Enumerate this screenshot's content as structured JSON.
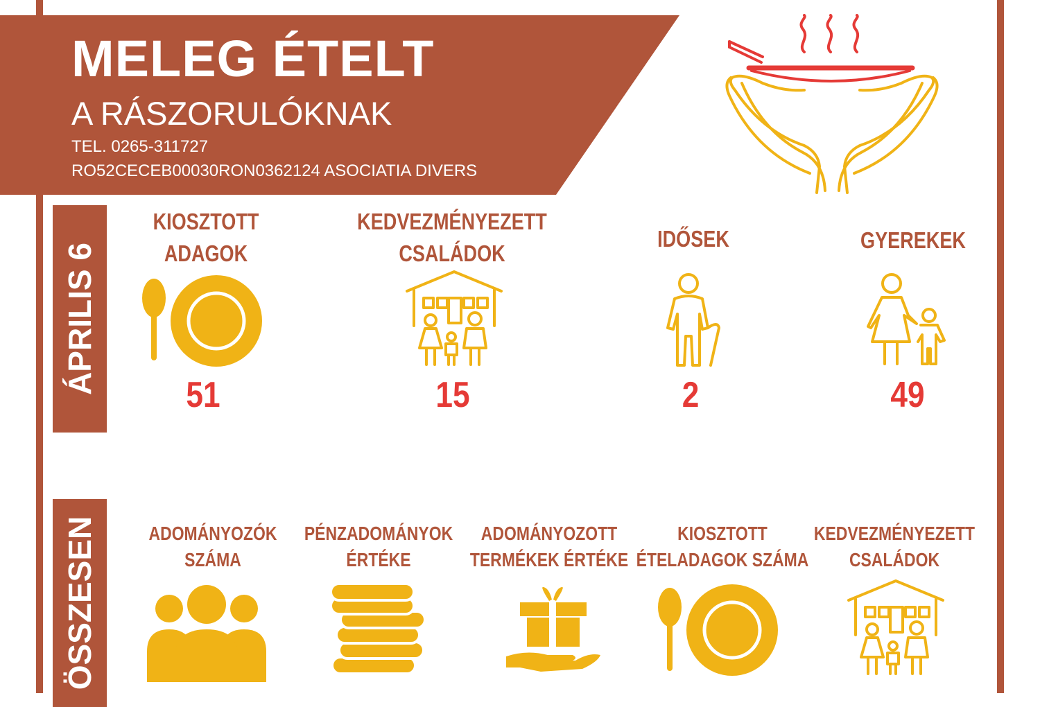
{
  "header": {
    "title": "MELEG ÉTELT",
    "subtitle": "A RÁSZORULÓKNAK",
    "tel": "TEL. 0265-311727",
    "iban": "RO52CECEB00030RON0362124 ASOCIATIA DIVERS"
  },
  "colors": {
    "brand": "#b0553a",
    "icon": "#f0b316",
    "number": "#e53a36",
    "logo_red": "#e53a36"
  },
  "section_april": {
    "label": "ÁPRILIS 6",
    "items": [
      {
        "line1": "KIOSZTOTT",
        "line2": "ADAGOK",
        "value": "51",
        "icon": "plate-spoon-icon"
      },
      {
        "line1": "KEDVEZMÉNYEZETT",
        "line2": "CSALÁDOK",
        "value": "15",
        "icon": "family-house-icon"
      },
      {
        "line1": "IDŐSEK",
        "line2": "",
        "value": "2",
        "icon": "elderly-person-icon"
      },
      {
        "line1": "GYEREKEK",
        "line2": "",
        "value": "49",
        "icon": "parent-child-icon"
      }
    ]
  },
  "section_total": {
    "label": "ÖSSZESEN",
    "items": [
      {
        "line1": "ADOMÁNYOZÓK",
        "line2": "SZÁMA",
        "icon": "people-group-icon"
      },
      {
        "line1": "PÉNZADOMÁNYOK",
        "line2": "ÉRTÉKE",
        "icon": "coin-stack-icon"
      },
      {
        "line1": "ADOMÁNYOZOTT",
        "line2": "TERMÉKEK ÉRTÉKE",
        "icon": "gift-hand-icon"
      },
      {
        "line1": "KIOSZTOTT",
        "line2": "ÉTELADAGOK SZÁMA",
        "icon": "plate-spoon-icon"
      },
      {
        "line1": "KEDVEZMÉNYEZETT",
        "line2": "CSALÁDOK",
        "icon": "family-house-icon"
      }
    ]
  }
}
